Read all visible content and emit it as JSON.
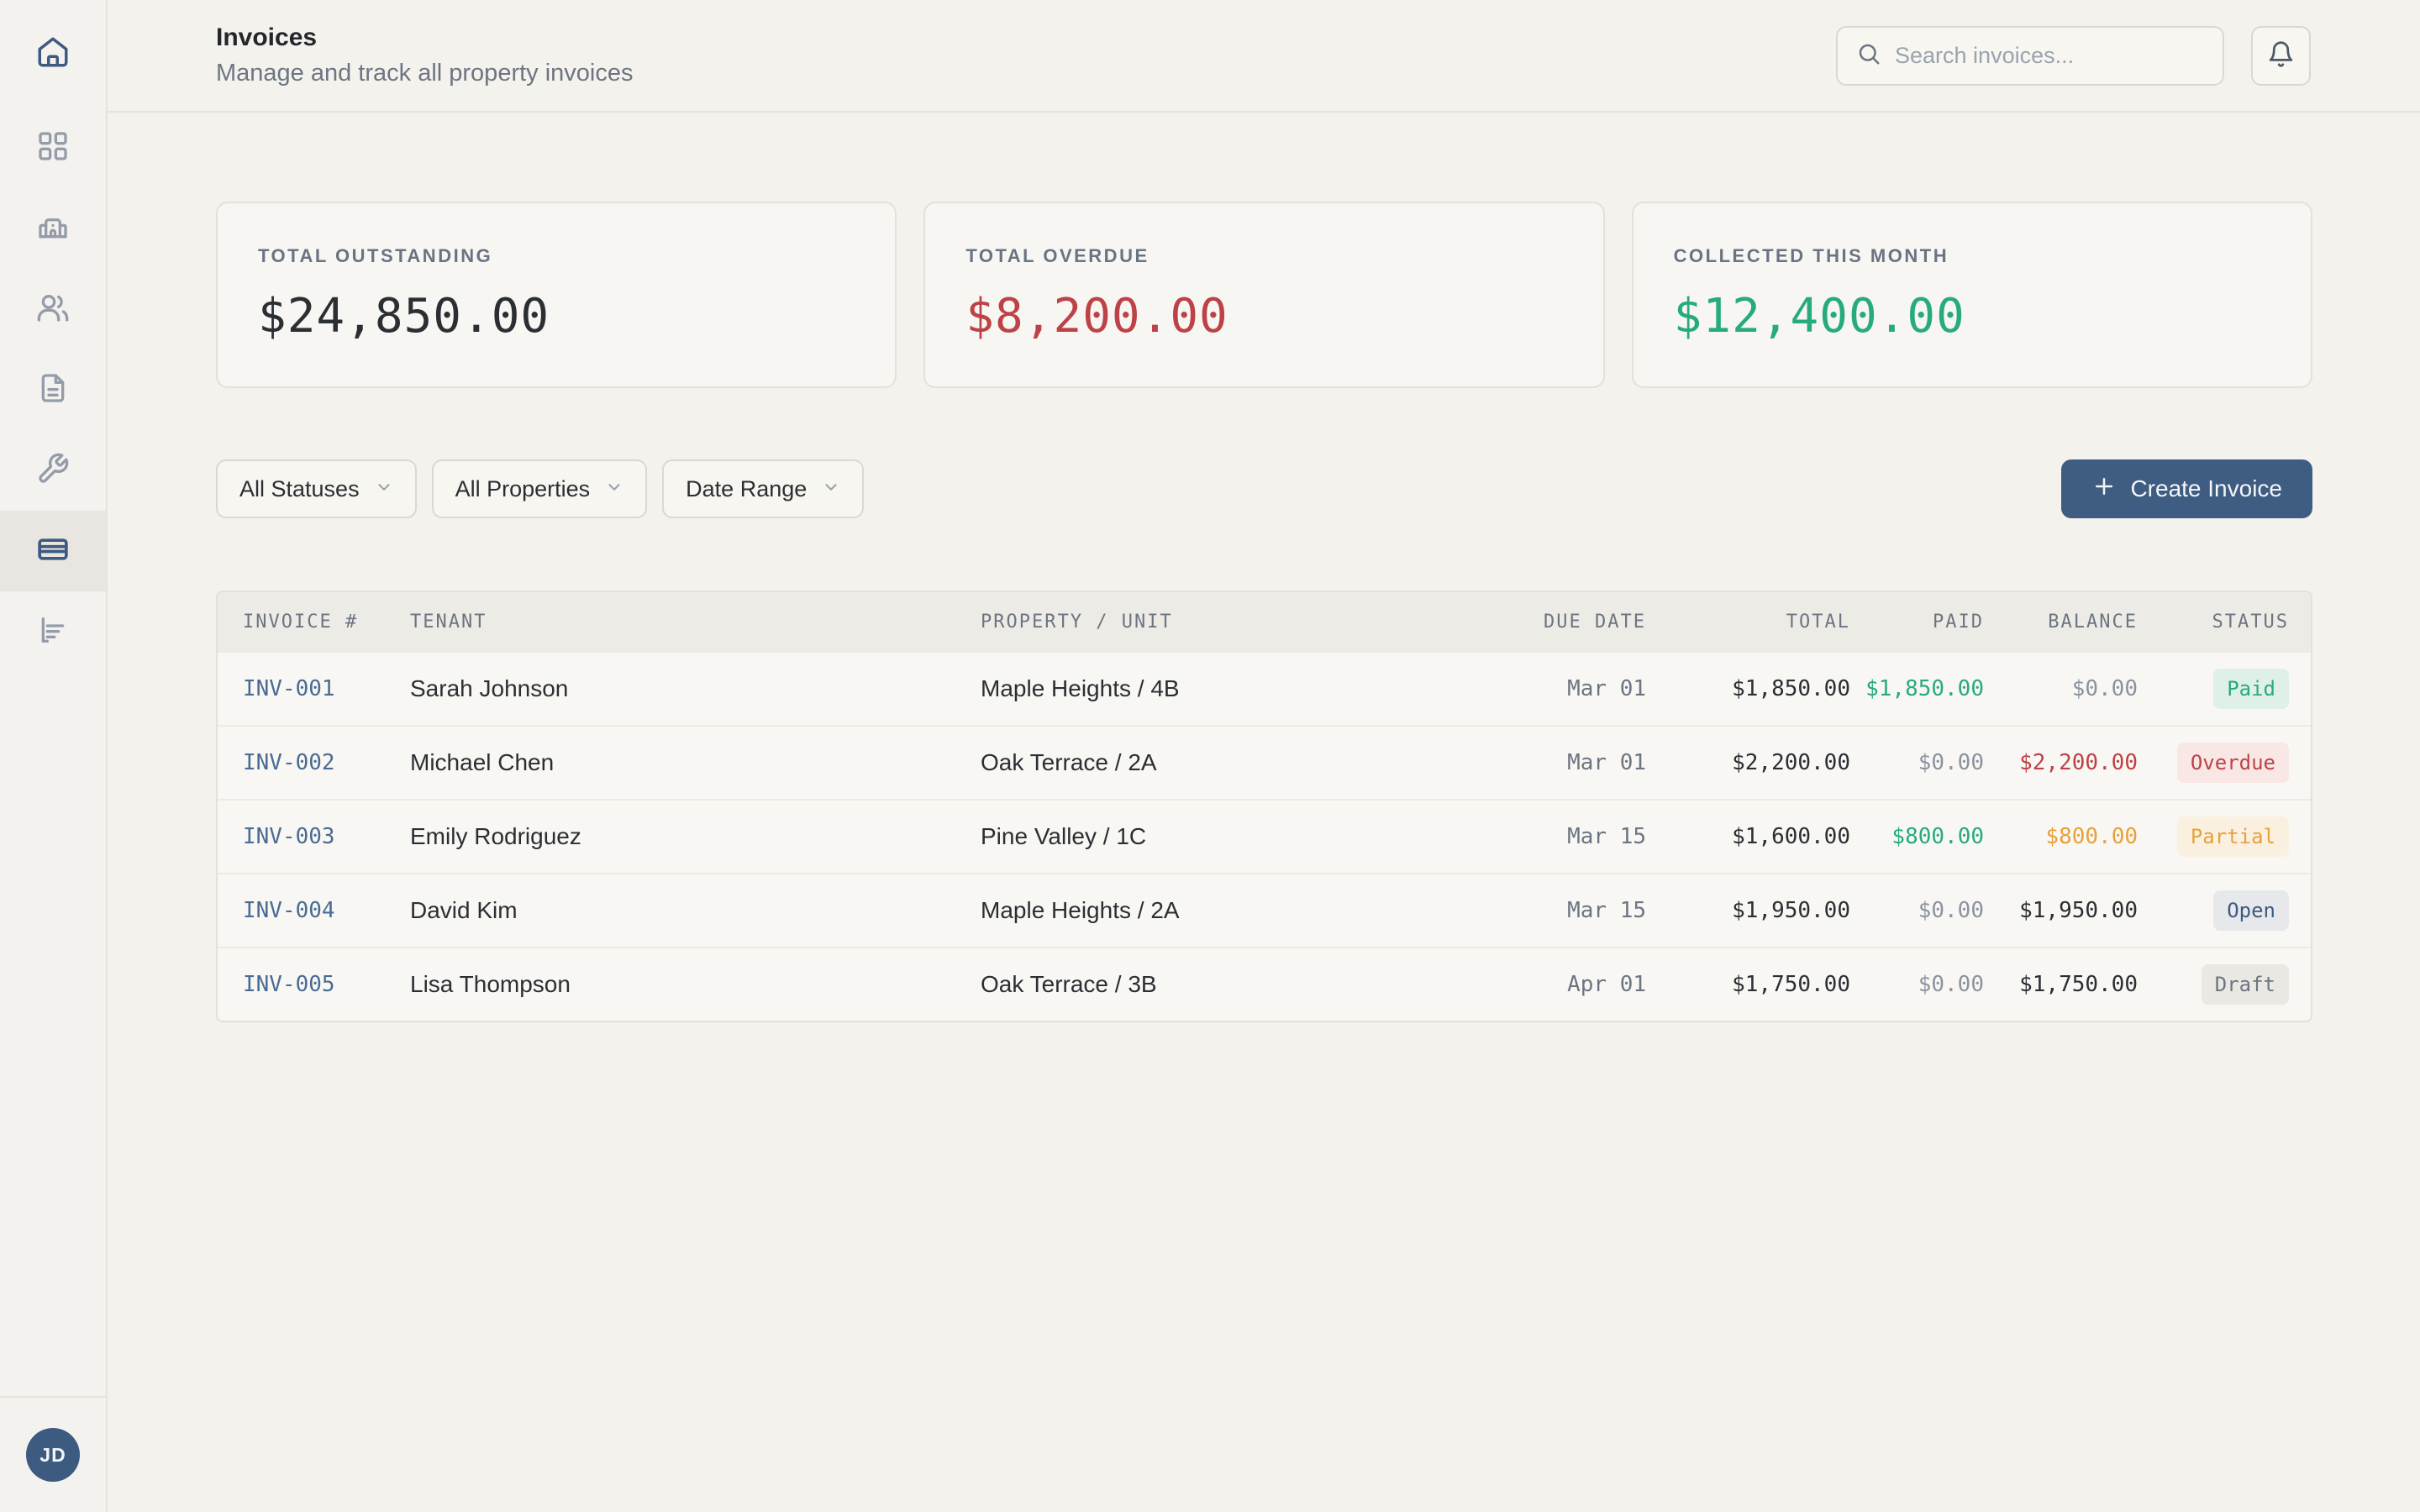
{
  "palette": {
    "background": "#f4f2ed",
    "navy": "#3d5a80",
    "green": "#27ab7d",
    "red": "#bd4247",
    "orange": "#e8a13a",
    "muted_gray": "#8b93a0"
  },
  "sidebar": {
    "logo_icon": "home-icon",
    "items": [
      {
        "name": "dashboard",
        "icon": "grid-icon",
        "active": false
      },
      {
        "name": "properties",
        "icon": "building-icon",
        "active": false
      },
      {
        "name": "tenants",
        "icon": "users-icon",
        "active": false
      },
      {
        "name": "documents",
        "icon": "file-text-icon",
        "active": false
      },
      {
        "name": "maintenance",
        "icon": "wrench-icon",
        "active": false
      },
      {
        "name": "invoices",
        "icon": "credit-card-icon",
        "active": true
      },
      {
        "name": "reports",
        "icon": "bar-chart-icon",
        "active": false
      }
    ],
    "avatar_initials": "JD"
  },
  "header": {
    "title": "Invoices",
    "subtitle": "Manage and track all property invoices",
    "search_placeholder": "Search invoices...",
    "search_icon": "search-icon",
    "bell_icon": "bell-icon"
  },
  "stats": [
    {
      "label": "TOTAL OUTSTANDING",
      "value": "$24,850.00",
      "color": "#2b2e33"
    },
    {
      "label": "TOTAL OVERDUE",
      "value": "$8,200.00",
      "color": "#bd4247"
    },
    {
      "label": "COLLECTED THIS MONTH",
      "value": "$12,400.00",
      "color": "#27ab7d"
    }
  ],
  "filters": [
    {
      "label": "All Statuses"
    },
    {
      "label": "All Properties"
    },
    {
      "label": "Date Range"
    }
  ],
  "create_button": {
    "label": "Create Invoice",
    "icon": "plus-icon"
  },
  "table": {
    "columns": [
      "INVOICE #",
      "TENANT",
      "PROPERTY / UNIT",
      "DUE DATE",
      "TOTAL",
      "PAID",
      "BALANCE",
      "STATUS"
    ],
    "rows": [
      {
        "invoice": "INV-001",
        "tenant": "Sarah Johnson",
        "property": "Maple Heights / 4B",
        "due": "Mar 01",
        "total": "$1,850.00",
        "paid": "$1,850.00",
        "paid_tone": "green",
        "balance": "$0.00",
        "balance_tone": "muted",
        "status": "Paid",
        "status_tone": "paid"
      },
      {
        "invoice": "INV-002",
        "tenant": "Michael Chen",
        "property": "Oak Terrace / 2A",
        "due": "Mar 01",
        "total": "$2,200.00",
        "paid": "$0.00",
        "paid_tone": "muted",
        "balance": "$2,200.00",
        "balance_tone": "red",
        "status": "Overdue",
        "status_tone": "overdue"
      },
      {
        "invoice": "INV-003",
        "tenant": "Emily Rodriguez",
        "property": "Pine Valley / 1C",
        "due": "Mar 15",
        "total": "$1,600.00",
        "paid": "$800.00",
        "paid_tone": "green",
        "balance": "$800.00",
        "balance_tone": "orange",
        "status": "Partial",
        "status_tone": "partial"
      },
      {
        "invoice": "INV-004",
        "tenant": "David Kim",
        "property": "Maple Heights / 2A",
        "due": "Mar 15",
        "total": "$1,950.00",
        "paid": "$0.00",
        "paid_tone": "muted",
        "balance": "$1,950.00",
        "balance_tone": "dark",
        "status": "Open",
        "status_tone": "open"
      },
      {
        "invoice": "INV-005",
        "tenant": "Lisa Thompson",
        "property": "Oak Terrace / 3B",
        "due": "Apr 01",
        "total": "$1,750.00",
        "paid": "$0.00",
        "paid_tone": "muted",
        "balance": "$1,750.00",
        "balance_tone": "dark",
        "status": "Draft",
        "status_tone": "draft"
      }
    ]
  }
}
